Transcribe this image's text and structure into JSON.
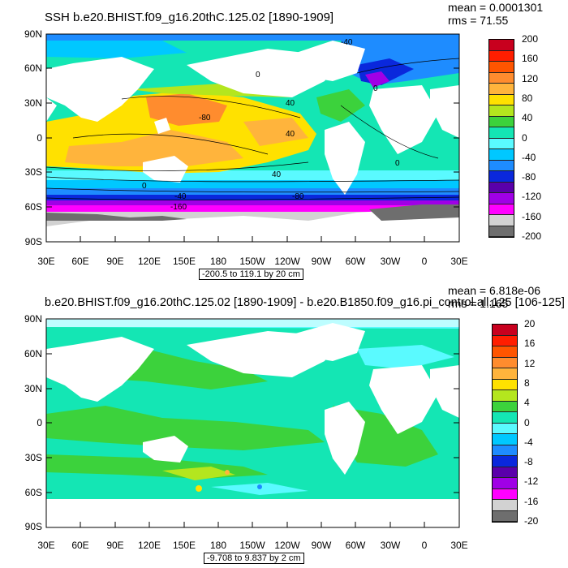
{
  "panel1": {
    "title": "SSH b.e20.BHIST.f09_g16.20thC.125.02 [1890-1909]",
    "mean_line": "mean = 0.0001301",
    "rms_line": "rms = 71.55",
    "range_label": "-200.5 to 119.1 by 20 cm",
    "lat_labels": [
      "90N",
      "60N",
      "30N",
      "0",
      "30S",
      "60S",
      "90S"
    ],
    "lon_labels": [
      "30E",
      "60E",
      "90E",
      "120E",
      "150E",
      "180",
      "150W",
      "120W",
      "90W",
      "60W",
      "30W",
      "0",
      "30E"
    ],
    "colorbar_labels": [
      "200",
      "160",
      "120",
      "80",
      "40",
      "0",
      "-40",
      "-80",
      "-120",
      "-160",
      "-200"
    ],
    "colorbar_colors": [
      "#c8001e",
      "#ff1e00",
      "#ff5500",
      "#ff8c2e",
      "#ffb43c",
      "#ffe100",
      "#b4e61e",
      "#3cd23c",
      "#14e6b4",
      "#5afaff",
      "#00c8ff",
      "#1e8cff",
      "#0a28dc",
      "#5a00aa",
      "#a000e6",
      "#ff00ff",
      "#d2d2d2",
      "#6e6e6e"
    ],
    "contour_labels": [
      "0",
      "0",
      "40",
      "40",
      "40",
      "-80",
      "0",
      "-40",
      "-80",
      "0",
      "-160",
      "-40"
    ]
  },
  "panel2": {
    "title": "b.e20.BHIST.f09_g16.20thC.125.02 [1890-1909] - b.e20.B1850.f09_g16.pi_control.all.125 [106-125]",
    "mean_line": "mean = 6.818e-06",
    "rms_line": "rms = 1.165",
    "range_label": "-9.708 to 9.837 by 2 cm",
    "lat_labels": [
      "90N",
      "60N",
      "30N",
      "0",
      "30S",
      "60S",
      "90S"
    ],
    "lon_labels": [
      "30E",
      "60E",
      "90E",
      "120E",
      "150E",
      "180",
      "150W",
      "120W",
      "90W",
      "60W",
      "30W",
      "0",
      "30E"
    ],
    "colorbar_labels": [
      "20",
      "16",
      "12",
      "8",
      "4",
      "0",
      "-4",
      "-8",
      "-12",
      "-16",
      "-20"
    ],
    "colorbar_colors": [
      "#c8001e",
      "#ff1e00",
      "#ff5500",
      "#ff8c2e",
      "#ffb43c",
      "#ffe100",
      "#b4e61e",
      "#3cd23c",
      "#14e6b4",
      "#5afaff",
      "#00c8ff",
      "#1e8cff",
      "#0a28dc",
      "#5a00aa",
      "#a000e6",
      "#ff00ff",
      "#d2d2d2",
      "#6e6e6e"
    ]
  }
}
